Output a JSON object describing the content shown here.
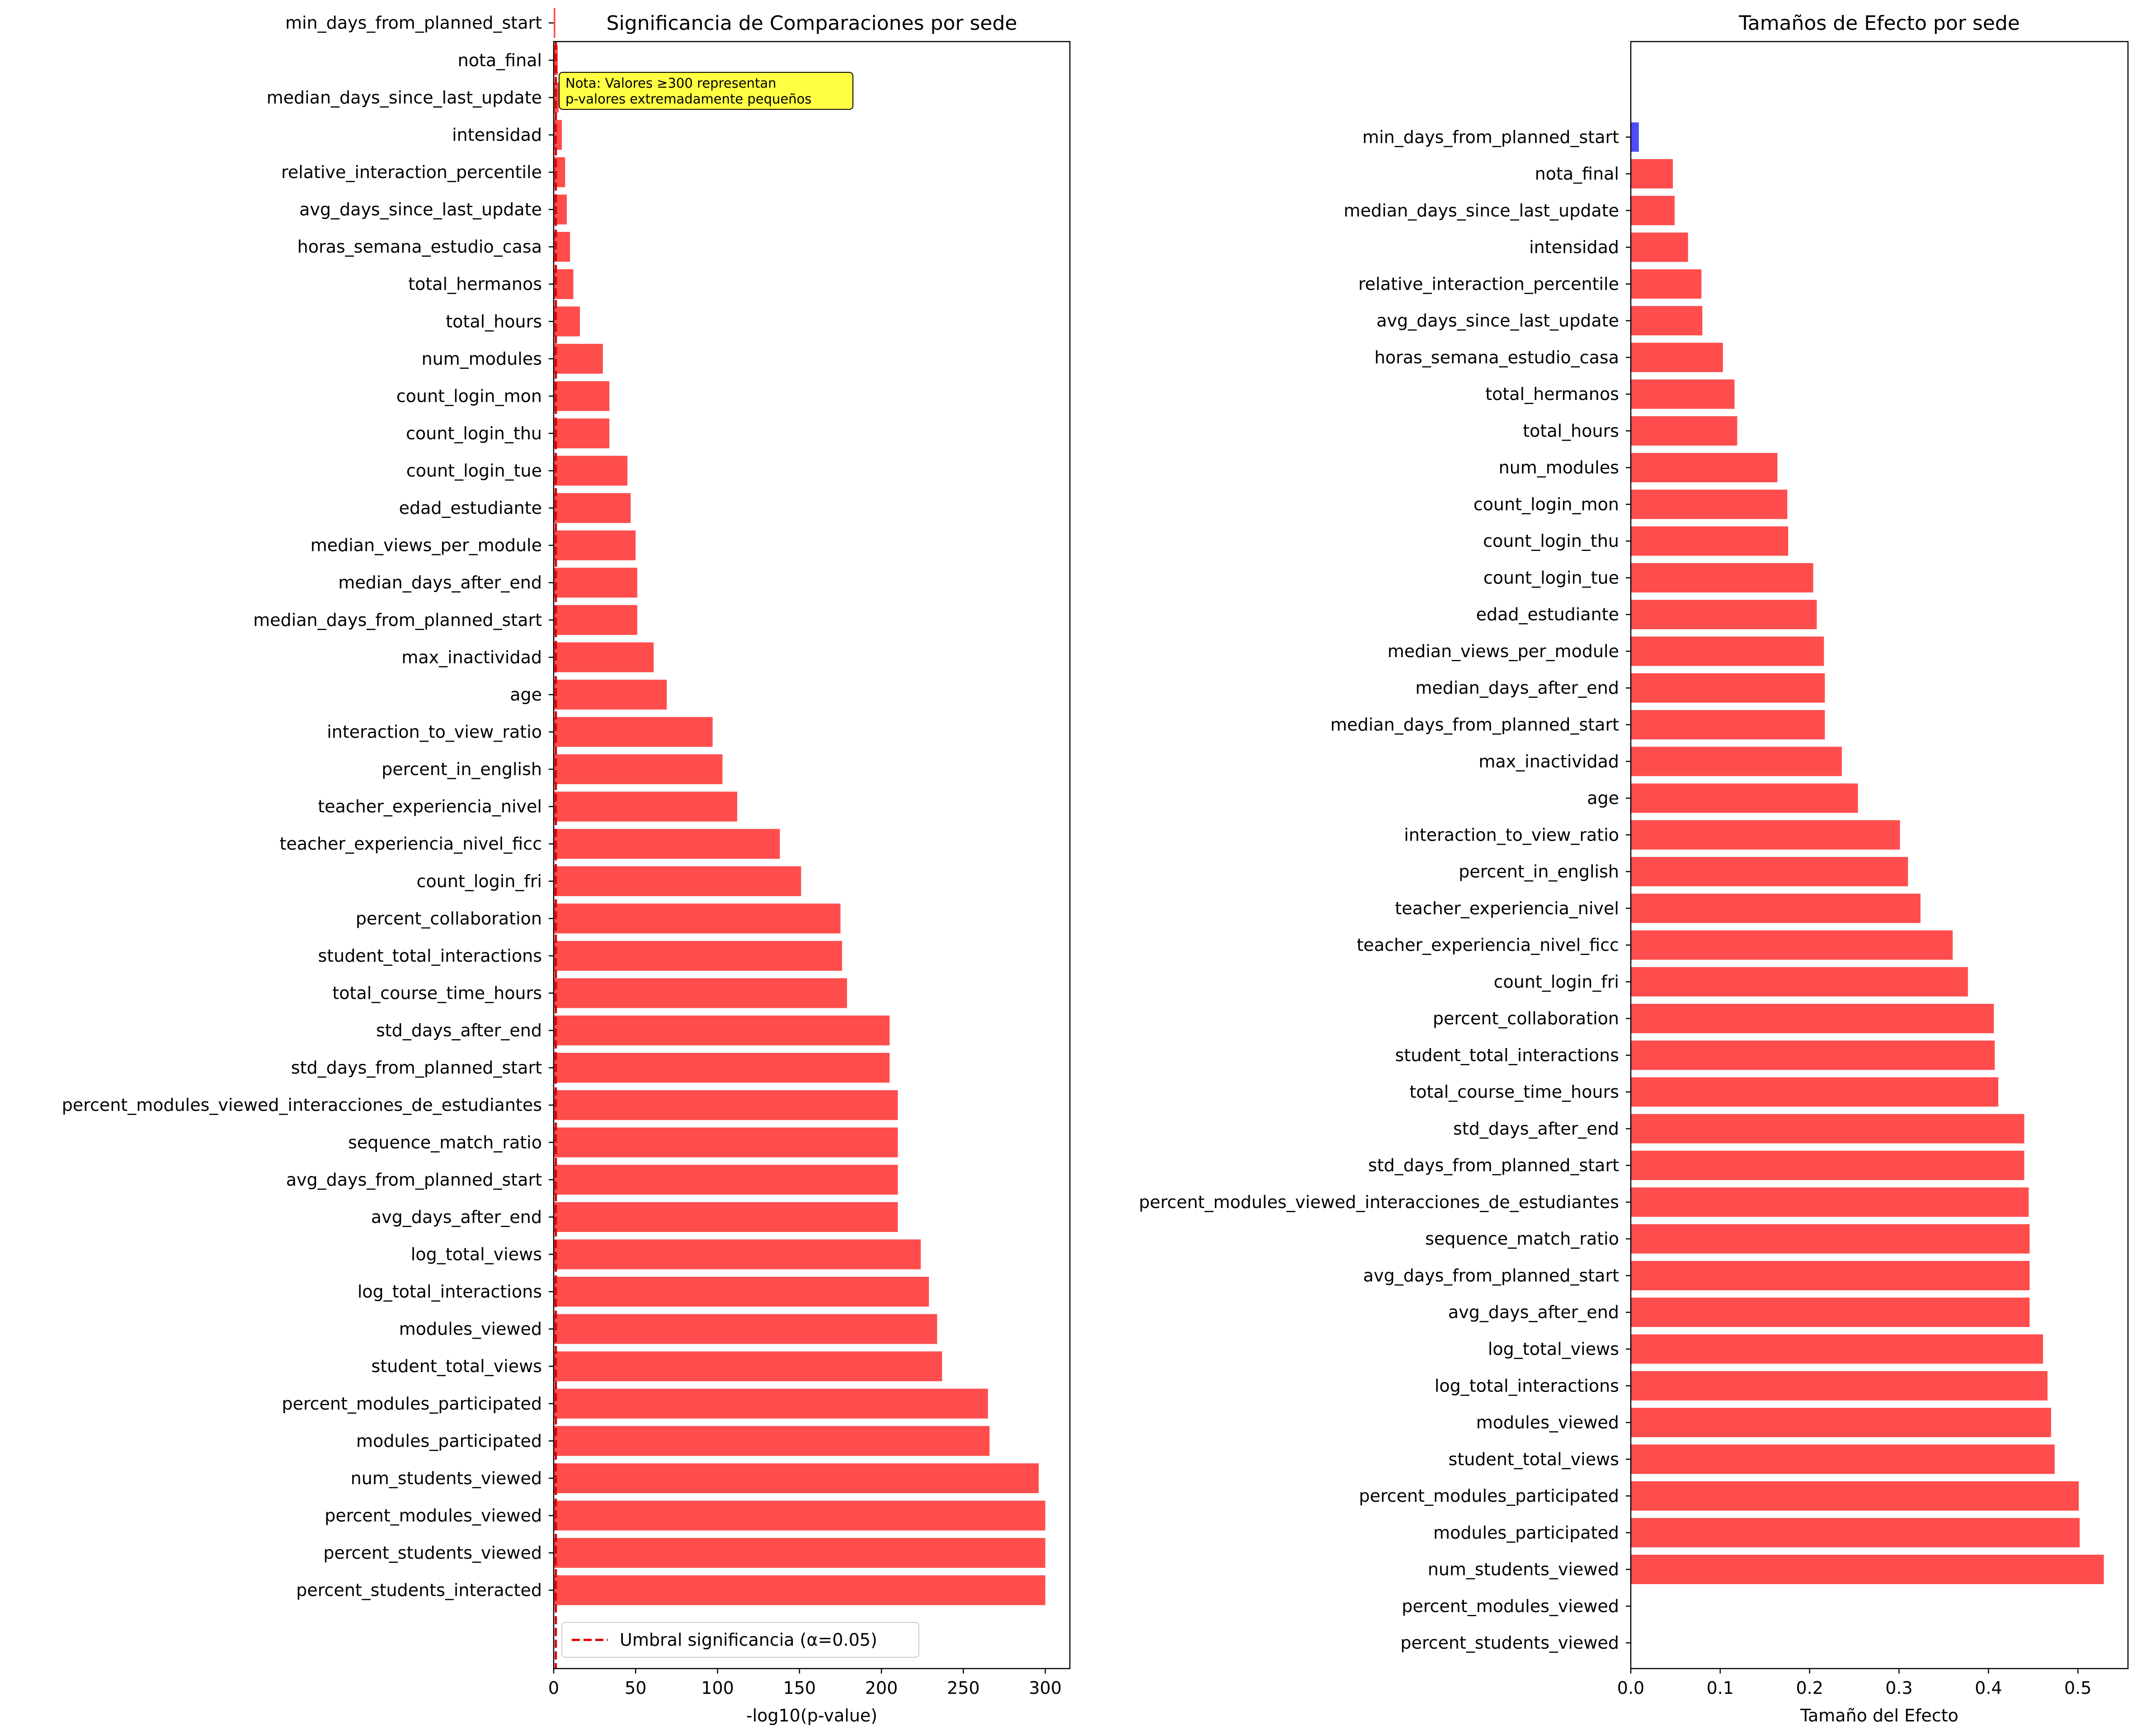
{
  "chart_data": [
    {
      "type": "bar",
      "orientation": "horizontal",
      "title": "Significancia de Comparaciones por sede",
      "xlabel": "-log10(p-value)",
      "ylabel": "",
      "xlim": [
        0,
        315
      ],
      "xticks": [
        "0",
        "50",
        "100",
        "150",
        "200",
        "250",
        "300"
      ],
      "bar_color": "#ff4d4d",
      "categories": [
        "min_days_from_planned_start",
        "nota_final",
        "median_days_since_last_update",
        "intensidad",
        "relative_interaction_percentile",
        "avg_days_since_last_update",
        "horas_semana_estudio_casa",
        "total_hermanos",
        "total_hours",
        "num_modules",
        "count_login_mon",
        "count_login_thu",
        "count_login_tue",
        "edad_estudiante",
        "median_views_per_module",
        "median_days_after_end",
        "median_days_from_planned_start",
        "max_inactividad",
        "age",
        "interaction_to_view_ratio",
        "percent_in_english",
        "teacher_experiencia_nivel",
        "teacher_experiencia_nivel_ficc",
        "count_login_fri",
        "percent_collaboration",
        "student_total_interactions",
        "total_course_time_hours",
        "std_days_after_end",
        "std_days_from_planned_start",
        "percent_modules_viewed_interacciones_de_estudiantes",
        "sequence_match_ratio",
        "avg_days_from_planned_start",
        "avg_days_after_end",
        "log_total_views",
        "log_total_interactions",
        "modules_viewed",
        "student_total_views",
        "percent_modules_participated",
        "modules_participated",
        "num_students_viewed",
        "percent_modules_viewed",
        "percent_students_viewed",
        "percent_students_interacted"
      ],
      "values": [
        1,
        2.5,
        3,
        5,
        7,
        8,
        10,
        12,
        16,
        30,
        34,
        34,
        45,
        47,
        50,
        51,
        51,
        61,
        69,
        97,
        103,
        112,
        138,
        151,
        175,
        176,
        179,
        205,
        205,
        210,
        210,
        210,
        210,
        224,
        229,
        234,
        237,
        265,
        266,
        296,
        300,
        300,
        300
      ],
      "threshold_line": {
        "value": 1.3,
        "style": "dashed",
        "color": "#e00000"
      },
      "legend": {
        "entries": [
          "Umbral significancia (α=0.05)"
        ],
        "placement": "bottom-right"
      },
      "annotation": {
        "lines": [
          "Nota: Valores ≥300 representan",
          "p-valores extremadamente pequeños"
        ],
        "background": "#ffff44"
      }
    },
    {
      "type": "bar",
      "orientation": "horizontal",
      "title": "Tamaños de Efecto por sede",
      "xlabel": "Tamaño del Efecto",
      "ylabel": "",
      "xlim": [
        0,
        0.556
      ],
      "xticks": [
        "0.0",
        "0.1",
        "0.2",
        "0.3",
        "0.4",
        "0.5"
      ],
      "categories": [
        "min_days_from_planned_start",
        "nota_final",
        "median_days_since_last_update",
        "intensidad",
        "relative_interaction_percentile",
        "avg_days_since_last_update",
        "horas_semana_estudio_casa",
        "total_hermanos",
        "total_hours",
        "num_modules",
        "count_login_mon",
        "count_login_thu",
        "count_login_tue",
        "edad_estudiante",
        "median_views_per_module",
        "median_days_after_end",
        "median_days_from_planned_start",
        "max_inactividad",
        "age",
        "interaction_to_view_ratio",
        "percent_in_english",
        "teacher_experiencia_nivel",
        "teacher_experiencia_nivel_ficc",
        "count_login_fri",
        "percent_collaboration",
        "student_total_interactions",
        "total_course_time_hours",
        "std_days_after_end",
        "std_days_from_planned_start",
        "percent_modules_viewed_interacciones_de_estudiantes",
        "sequence_match_ratio",
        "avg_days_from_planned_start",
        "avg_days_after_end",
        "log_total_views",
        "log_total_interactions",
        "modules_viewed",
        "student_total_views",
        "percent_modules_participated",
        "modules_participated",
        "num_students_viewed",
        "percent_modules_viewed",
        "percent_students_viewed"
      ],
      "values": [
        0.009,
        0.047,
        0.049,
        0.064,
        0.079,
        0.08,
        0.103,
        0.116,
        0.119,
        0.164,
        0.175,
        0.176,
        0.204,
        0.208,
        0.216,
        0.217,
        0.217,
        0.236,
        0.254,
        0.301,
        0.31,
        0.324,
        0.36,
        0.377,
        0.406,
        0.407,
        0.411,
        0.44,
        0.44,
        0.445,
        0.446,
        0.446,
        0.446,
        0.461,
        0.466,
        0.47,
        0.474,
        0.501,
        0.502,
        0.529,
        0,
        0
      ],
      "colors": [
        "#4d4dff",
        "#ff4d4d",
        "#ff4d4d",
        "#ff4d4d",
        "#ff4d4d",
        "#ff4d4d",
        "#ff4d4d",
        "#ff4d4d",
        "#ff4d4d",
        "#ff4d4d",
        "#ff4d4d",
        "#ff4d4d",
        "#ff4d4d",
        "#ff4d4d",
        "#ff4d4d",
        "#ff4d4d",
        "#ff4d4d",
        "#ff4d4d",
        "#ff4d4d",
        "#ff4d4d",
        "#ff4d4d",
        "#ff4d4d",
        "#ff4d4d",
        "#ff4d4d",
        "#ff4d4d",
        "#ff4d4d",
        "#ff4d4d",
        "#ff4d4d",
        "#ff4d4d",
        "#ff4d4d",
        "#ff4d4d",
        "#ff4d4d",
        "#ff4d4d",
        "#ff4d4d",
        "#ff4d4d",
        "#ff4d4d",
        "#ff4d4d",
        "#ff4d4d",
        "#ff4d4d",
        "#ff4d4d",
        "#ff4d4d",
        "#ff4d4d"
      ]
    }
  ]
}
